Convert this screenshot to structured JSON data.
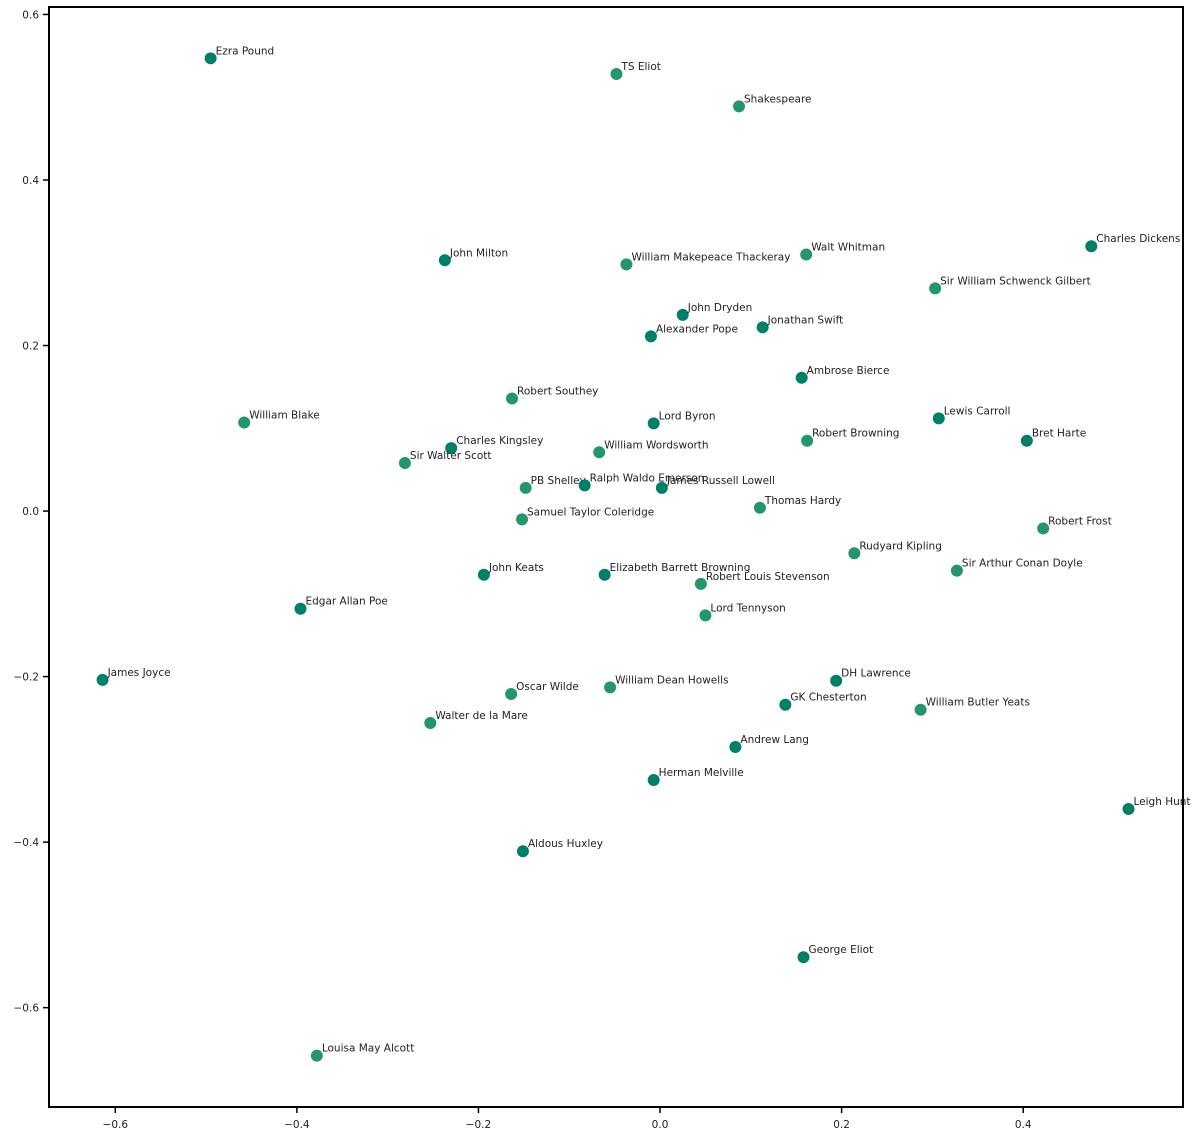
{
  "chart_data": {
    "type": "scatter",
    "xlim": [
      -0.673,
      0.576
    ],
    "ylim": [
      -0.72,
      0.609
    ],
    "xticks": [
      {
        "value": -0.6,
        "label": "−0.6"
      },
      {
        "value": -0.4,
        "label": "−0.4"
      },
      {
        "value": -0.2,
        "label": "−0.2"
      },
      {
        "value": 0,
        "label": "0.0"
      },
      {
        "value": 0.2,
        "label": "0.2"
      },
      {
        "value": 0.4,
        "label": "0.4"
      }
    ],
    "yticks": [
      {
        "value": -0.6,
        "label": "−0.6"
      },
      {
        "value": -0.4,
        "label": "−0.4"
      },
      {
        "value": -0.2,
        "label": "−0.2"
      },
      {
        "value": 0,
        "label": "0.0"
      },
      {
        "value": 0.2,
        "label": "0.2"
      },
      {
        "value": 0.4,
        "label": "0.4"
      },
      {
        "value": 0.6,
        "label": "0.6"
      }
    ],
    "labels": [
      "Ezra Pound",
      "TS Eliot",
      "Shakespeare",
      "John Milton",
      "William Makepeace Thackeray",
      "Walt Whitman",
      "Charles Dickens",
      "Sir William Schwenck Gilbert",
      "John Dryden",
      "Alexander Pope",
      "Jonathan Swift",
      "Ambrose Bierce",
      "Robert Southey",
      "William Blake",
      "Lord Byron",
      "Lewis Carroll",
      "Robert Browning",
      "Bret Harte",
      "Charles Kingsley",
      "Sir Walter Scott",
      "William Wordsworth",
      "PB Shelley",
      "Ralph Waldo Emerson",
      "James Russell Lowell",
      "Thomas Hardy",
      "Samuel Taylor Coleridge",
      "Robert Frost",
      "Rudyard Kipling",
      "Sir Arthur Conan Doyle",
      "John Keats",
      "Elizabeth Barrett Browning",
      "Robert Louis Stevenson",
      "Lord Tennyson",
      "Edgar Allan Poe",
      "James Joyce",
      "Oscar Wilde",
      "William Dean Howells",
      "DH Lawrence",
      "GK Chesterton",
      "William Butler Yeats",
      "Walter de la Mare",
      "Andrew Lang",
      "Herman Melville",
      "Leigh Hunt",
      "Aldous Huxley",
      "George Eliot",
      "Louisa May Alcott"
    ],
    "x": [
      -0.495,
      -0.048,
      0.087,
      -0.237,
      -0.037,
      0.161,
      0.475,
      0.303,
      0.025,
      -0.01,
      0.113,
      0.156,
      -0.163,
      -0.458,
      -0.007,
      0.307,
      0.162,
      0.404,
      -0.23,
      -0.281,
      -0.067,
      -0.148,
      -0.083,
      0.002,
      0.11,
      -0.152,
      0.422,
      0.214,
      0.327,
      -0.194,
      -0.061,
      0.045,
      0.05,
      -0.396,
      -0.614,
      -0.164,
      -0.055,
      0.194,
      0.138,
      0.287,
      -0.253,
      0.083,
      -0.007,
      0.516,
      -0.151,
      0.158,
      -0.378
    ],
    "y": [
      0.547,
      0.528,
      0.489,
      0.303,
      0.298,
      0.31,
      0.32,
      0.269,
      0.237,
      0.211,
      0.222,
      0.161,
      0.136,
      0.107,
      0.106,
      0.112,
      0.085,
      0.085,
      0.076,
      0.058,
      0.071,
      0.028,
      0.031,
      0.028,
      0.004,
      -0.01,
      -0.021,
      -0.051,
      -0.072,
      -0.077,
      -0.077,
      -0.088,
      -0.126,
      -0.118,
      -0.204,
      -0.221,
      -0.213,
      -0.205,
      -0.234,
      -0.24,
      -0.256,
      -0.285,
      -0.325,
      -0.36,
      -0.411,
      -0.539,
      -0.658
    ],
    "colors": [
      "#008066",
      "#23976b",
      "#23976b",
      "#008066",
      "#23976b",
      "#23976b",
      "#008066",
      "#23976b",
      "#008066",
      "#008066",
      "#008066",
      "#008066",
      "#23976b",
      "#23976b",
      "#008066",
      "#008066",
      "#23976b",
      "#008066",
      "#008066",
      "#23976b",
      "#23976b",
      "#23976b",
      "#008066",
      "#008066",
      "#23976b",
      "#23976b",
      "#23976b",
      "#23976b",
      "#23976b",
      "#008066",
      "#008066",
      "#23976b",
      "#23976b",
      "#008066",
      "#008066",
      "#23976b",
      "#23976b",
      "#008066",
      "#008066",
      "#23976b",
      "#23976b",
      "#008066",
      "#008066",
      "#008066",
      "#008066",
      "#008066",
      "#23976b"
    ]
  }
}
